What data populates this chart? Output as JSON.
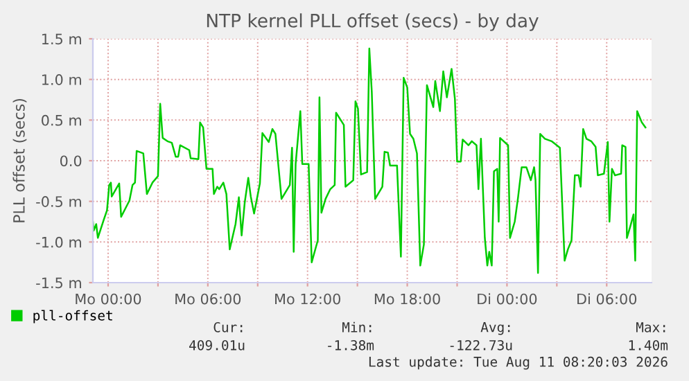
{
  "chart_data": {
    "type": "line",
    "title": "NTP kernel PLL offset (secs) - by day",
    "ylabel": "PLL offset (secs)",
    "x": [
      "2026-08-09T23:05",
      "2026-08-09T23:08",
      "2026-08-09T23:17",
      "2026-08-09T23:23",
      "2026-08-09T23:45",
      "2026-08-09T23:56",
      "2026-08-10T00:04",
      "2026-08-10T00:10",
      "2026-08-10T00:13",
      "2026-08-10T00:40",
      "2026-08-10T00:47",
      "2026-08-10T01:17",
      "2026-08-10T01:28",
      "2026-08-10T01:37",
      "2026-08-10T01:43",
      "2026-08-10T02:07",
      "2026-08-10T02:20",
      "2026-08-10T02:40",
      "2026-08-10T03:00",
      "2026-08-10T03:08",
      "2026-08-10T03:17",
      "2026-08-10T03:34",
      "2026-08-10T03:50",
      "2026-08-10T04:04",
      "2026-08-10T04:13",
      "2026-08-10T04:20",
      "2026-08-10T04:53",
      "2026-08-10T04:58",
      "2026-08-10T05:26",
      "2026-08-10T05:32",
      "2026-08-10T05:43",
      "2026-08-10T05:55",
      "2026-08-10T06:17",
      "2026-08-10T06:22",
      "2026-08-10T06:34",
      "2026-08-10T06:41",
      "2026-08-10T06:56",
      "2026-08-10T07:07",
      "2026-08-10T07:19",
      "2026-08-10T07:40",
      "2026-08-10T07:52",
      "2026-08-10T08:02",
      "2026-08-10T08:13",
      "2026-08-10T08:26",
      "2026-08-10T08:35",
      "2026-08-10T08:47",
      "2026-08-10T09:08",
      "2026-08-10T09:17",
      "2026-08-10T09:40",
      "2026-08-10T09:53",
      "2026-08-10T10:04",
      "2026-08-10T10:26",
      "2026-08-10T10:56",
      "2026-08-10T11:04",
      "2026-08-10T11:10",
      "2026-08-10T11:17",
      "2026-08-10T11:34",
      "2026-08-10T11:41",
      "2026-08-10T12:04",
      "2026-08-10T12:15",
      "2026-08-10T12:37",
      "2026-08-10T12:43",
      "2026-08-10T12:50",
      "2026-08-10T13:05",
      "2026-08-10T13:22",
      "2026-08-10T13:38",
      "2026-08-10T13:43",
      "2026-08-10T14:00",
      "2026-08-10T14:11",
      "2026-08-10T14:17",
      "2026-08-10T14:45",
      "2026-08-10T14:53",
      "2026-08-10T15:02",
      "2026-08-10T15:13",
      "2026-08-10T15:35",
      "2026-08-10T15:43",
      "2026-08-10T15:52",
      "2026-08-10T16:04",
      "2026-08-10T16:30",
      "2026-08-10T16:38",
      "2026-08-10T16:50",
      "2026-08-10T16:58",
      "2026-08-10T17:23",
      "2026-08-10T17:37",
      "2026-08-10T17:47",
      "2026-08-10T18:00",
      "2026-08-10T18:10",
      "2026-08-10T18:22",
      "2026-08-10T18:35",
      "2026-08-10T18:47",
      "2026-08-10T19:00",
      "2026-08-10T19:11",
      "2026-08-10T19:34",
      "2026-08-10T19:41",
      "2026-08-10T19:58",
      "2026-08-10T20:10",
      "2026-08-10T20:23",
      "2026-08-10T20:40",
      "2026-08-10T20:52",
      "2026-08-10T21:00",
      "2026-08-10T21:13",
      "2026-08-10T21:20",
      "2026-08-10T21:41",
      "2026-08-10T21:53",
      "2026-08-10T22:10",
      "2026-08-10T22:17",
      "2026-08-10T22:26",
      "2026-08-10T22:40",
      "2026-08-10T22:49",
      "2026-08-10T22:56",
      "2026-08-10T23:05",
      "2026-08-10T23:13",
      "2026-08-10T23:25",
      "2026-08-10T23:30",
      "2026-08-10T23:35",
      "2026-08-11T00:04",
      "2026-08-11T00:11",
      "2026-08-11T00:28",
      "2026-08-11T00:40",
      "2026-08-11T00:53",
      "2026-08-11T01:10",
      "2026-08-11T01:26",
      "2026-08-11T01:38",
      "2026-08-11T01:43",
      "2026-08-11T01:52",
      "2026-08-11T02:00",
      "2026-08-11T02:17",
      "2026-08-11T02:41",
      "2026-08-11T03:11",
      "2026-08-11T03:28",
      "2026-08-11T03:40",
      "2026-08-11T03:53",
      "2026-08-11T04:05",
      "2026-08-11T04:19",
      "2026-08-11T04:26",
      "2026-08-11T04:35",
      "2026-08-11T04:47",
      "2026-08-11T05:04",
      "2026-08-11T05:20",
      "2026-08-11T05:28",
      "2026-08-11T05:50",
      "2026-08-11T06:04",
      "2026-08-11T06:10",
      "2026-08-11T06:19",
      "2026-08-11T06:30",
      "2026-08-11T06:52",
      "2026-08-11T06:56",
      "2026-08-11T07:08",
      "2026-08-11T07:13",
      "2026-08-11T07:25",
      "2026-08-11T07:37",
      "2026-08-11T07:43",
      "2026-08-11T07:50",
      "2026-08-11T08:07",
      "2026-08-11T08:20"
    ],
    "series": [
      {
        "name": "pll-offset",
        "color": "#00cc00",
        "values": [
          -0.75,
          -0.86,
          -0.78,
          -0.95,
          -0.72,
          -0.61,
          -0.3,
          -0.27,
          -0.44,
          -0.28,
          -0.69,
          -0.49,
          -0.3,
          -0.27,
          0.12,
          0.09,
          -0.41,
          -0.27,
          -0.19,
          0.7,
          0.28,
          0.24,
          0.22,
          0.05,
          0.05,
          0.19,
          0.13,
          0.03,
          0.02,
          0.47,
          0.41,
          -0.1,
          -0.1,
          -0.41,
          -0.32,
          -0.35,
          -0.27,
          -0.41,
          -1.09,
          -0.78,
          -0.45,
          -0.92,
          -0.52,
          -0.21,
          -0.44,
          -0.65,
          -0.28,
          0.34,
          0.23,
          0.39,
          0.33,
          -0.47,
          -0.3,
          0.16,
          -1.12,
          -0.04,
          0.61,
          -0.04,
          -0.04,
          -1.25,
          -0.98,
          0.78,
          -0.64,
          -0.47,
          -0.35,
          -0.3,
          0.59,
          0.5,
          0.44,
          -0.32,
          -0.24,
          0.73,
          0.64,
          -0.17,
          -0.14,
          1.38,
          0.84,
          -0.47,
          -0.32,
          0.11,
          0.1,
          -0.06,
          -0.06,
          -1.18,
          1.02,
          0.9,
          0.33,
          0.27,
          0.09,
          -1.29,
          -1.03,
          0.93,
          0.66,
          0.98,
          0.61,
          1.1,
          0.78,
          1.13,
          0.76,
          -0.01,
          -0.01,
          0.26,
          0.19,
          0.24,
          0.19,
          -0.35,
          0.27,
          -0.95,
          -1.29,
          -1.12,
          -1.29,
          -0.13,
          -0.1,
          -0.75,
          0.28,
          0.19,
          -0.95,
          -0.75,
          -0.45,
          -0.08,
          -0.08,
          -0.24,
          -0.08,
          -0.24,
          -1.38,
          0.33,
          0.27,
          0.24,
          0.16,
          -1.23,
          -1.09,
          -0.98,
          -0.18,
          -0.18,
          -0.32,
          0.39,
          0.27,
          0.24,
          0.17,
          -0.18,
          -0.16,
          0.23,
          -0.75,
          -0.1,
          -0.18,
          -0.16,
          0.19,
          0.17,
          -0.95,
          -0.81,
          -0.66,
          -1.23,
          0.61,
          0.47,
          0.41
        ]
      }
    ],
    "xlim": [
      "2026-08-09T23:05",
      "2026-08-11T08:42"
    ],
    "xticks": [
      {
        "value": "2026-08-10T00:00",
        "label": "Mo 00:00"
      },
      {
        "value": "2026-08-10T03:00",
        "label": null
      },
      {
        "value": "2026-08-10T06:00",
        "label": "Mo 06:00"
      },
      {
        "value": "2026-08-10T09:00",
        "label": null
      },
      {
        "value": "2026-08-10T12:00",
        "label": "Mo 12:00"
      },
      {
        "value": "2026-08-10T15:00",
        "label": null
      },
      {
        "value": "2026-08-10T18:00",
        "label": "Mo 18:00"
      },
      {
        "value": "2026-08-10T21:00",
        "label": null
      },
      {
        "value": "2026-08-11T00:00",
        "label": "Di 00:00"
      },
      {
        "value": "2026-08-11T03:00",
        "label": null
      },
      {
        "value": "2026-08-11T06:00",
        "label": "Di 06:00"
      }
    ],
    "ylim": [
      -1.5,
      1.5
    ],
    "yticks": [
      {
        "value": -1.5,
        "label": "-1.5 m"
      },
      {
        "value": -1.0,
        "label": "-1.0 m"
      },
      {
        "value": -0.5,
        "label": "-0.5 m"
      },
      {
        "value": 0,
        "label": "0.0"
      },
      {
        "value": 0.5,
        "label": "0.5 m"
      },
      {
        "value": 1.0,
        "label": "1.0 m"
      },
      {
        "value": 1.5,
        "label": "1.5 m"
      }
    ],
    "grid": true,
    "legend": "bottom left",
    "line_style": "solid",
    "annotations": [
      "Cur:",
      "Min:",
      "Avg:",
      "Max:",
      "409.01u",
      "-1.38m",
      "-122.73u",
      "1.40m",
      "Last update: Tue Aug 11 08:20:03 2026"
    ]
  }
}
